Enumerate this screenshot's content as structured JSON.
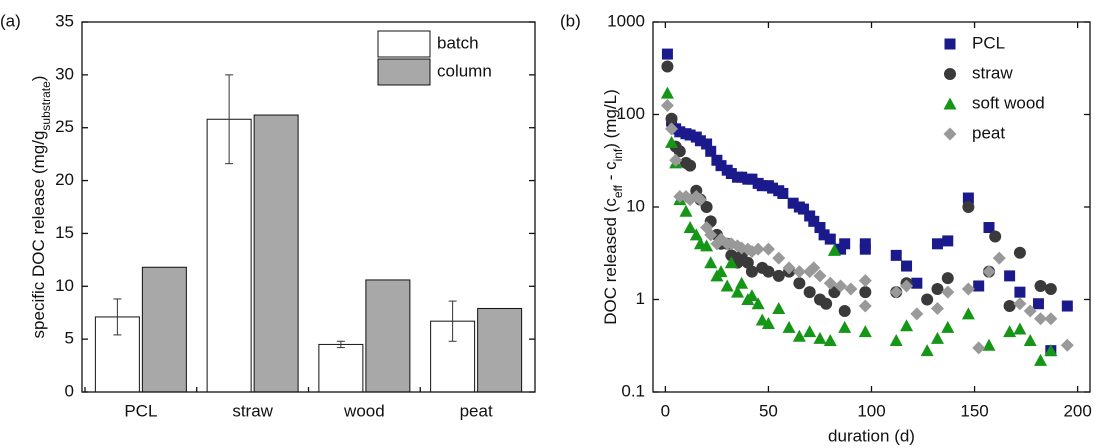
{
  "chart_data": [
    {
      "type": "bar",
      "panel_label": "(a)",
      "ylabel": [
        "specific DOC release (mg/g",
        "substrate",
        ")"
      ],
      "categories": [
        "PCL",
        "straw",
        "wood",
        "peat"
      ],
      "series": [
        {
          "name": "batch",
          "color": "#ffffff",
          "values": [
            7.1,
            25.8,
            4.5,
            6.7
          ],
          "errors": [
            1.7,
            4.2,
            0.3,
            1.9
          ]
        },
        {
          "name": "column",
          "color": "#a8a8a8",
          "values": [
            11.8,
            26.2,
            10.6,
            7.9
          ]
        }
      ],
      "ylim": [
        0,
        35
      ],
      "yticks": [
        0,
        5,
        10,
        15,
        20,
        25,
        30,
        35
      ],
      "legend": "top-right"
    },
    {
      "type": "scatter",
      "panel_label": "(b)",
      "ylabel": [
        "DOC released (c",
        "eff",
        " - c",
        "inf",
        ") (mg/L)"
      ],
      "xlabel": "duration (d)",
      "xlim": [
        -6,
        206
      ],
      "xticks": [
        0,
        50,
        100,
        150,
        200
      ],
      "ylim": [
        0.1,
        1000
      ],
      "yticks": [
        0.1,
        1,
        10,
        100,
        1000
      ],
      "yscale": "log",
      "legend": "top-right",
      "series": [
        {
          "name": "PCL",
          "color": "#1a1a8c",
          "marker": "square",
          "x": [
            1,
            3,
            5,
            7,
            10,
            12,
            15,
            17,
            20,
            22,
            25,
            27,
            30,
            32,
            35,
            37,
            40,
            42,
            45,
            47,
            50,
            52,
            55,
            57,
            62,
            65,
            67,
            70,
            72,
            75,
            77,
            80,
            85,
            87,
            97,
            97,
            112,
            117,
            122,
            132,
            137,
            147,
            152,
            157,
            167,
            172,
            181,
            187,
            195
          ],
          "values": [
            450,
            85,
            70,
            65,
            62,
            60,
            57,
            52,
            48,
            40,
            32,
            28,
            25,
            23,
            21,
            21,
            20,
            20,
            18,
            17,
            17,
            16,
            15,
            14,
            11,
            10,
            9.5,
            8,
            7,
            6,
            5,
            4.5,
            3.5,
            4,
            4,
            3.5,
            3,
            2.3,
            1.5,
            4,
            4.3,
            12.5,
            1.4,
            6,
            1.8,
            1.2,
            0.9,
            0.28,
            0.85
          ]
        },
        {
          "name": "straw",
          "color": "#3a3a3a",
          "marker": "circle",
          "x": [
            1,
            3,
            5,
            7,
            10,
            12,
            15,
            17,
            20,
            22,
            25,
            27,
            30,
            32,
            35,
            37,
            40,
            42,
            47,
            50,
            55,
            60,
            65,
            70,
            75,
            78,
            82,
            87,
            97,
            112,
            117,
            127,
            132,
            137,
            147,
            157,
            160,
            167,
            172,
            182,
            187
          ],
          "values": [
            330,
            90,
            45,
            40,
            30,
            28,
            15,
            12,
            10,
            7,
            5,
            4,
            4,
            3,
            2.5,
            3,
            2.5,
            2,
            2.2,
            2,
            1.8,
            2,
            1.5,
            1.2,
            1,
            0.9,
            1.2,
            0.75,
            1.2,
            1.2,
            1.5,
            1,
            1.3,
            1.7,
            10,
            2,
            4.8,
            0.85,
            3.2,
            1.4,
            1.3
          ]
        },
        {
          "name": "soft wood",
          "color": "#169616",
          "marker": "triangle",
          "x": [
            1,
            3,
            5,
            7,
            10,
            12,
            15,
            17,
            20,
            22,
            25,
            27,
            30,
            32,
            35,
            37,
            40,
            42,
            45,
            47,
            50,
            55,
            60,
            65,
            70,
            75,
            80,
            82,
            87,
            97,
            112,
            117,
            127,
            132,
            137,
            147,
            157,
            167,
            172,
            177,
            182,
            187
          ],
          "values": [
            170,
            50,
            30,
            12,
            9,
            6,
            5,
            4,
            3.8,
            2.5,
            1.8,
            2,
            1.4,
            2.5,
            1.2,
            1.5,
            1,
            1.1,
            0.9,
            0.6,
            0.55,
            0.8,
            0.5,
            0.4,
            0.45,
            0.38,
            0.36,
            3.4,
            0.5,
            0.45,
            0.36,
            0.52,
            0.28,
            0.38,
            0.5,
            0.7,
            0.32,
            0.45,
            0.48,
            0.36,
            0.22,
            0.28
          ]
        },
        {
          "name": "peat",
          "color": "#999999",
          "marker": "diamond",
          "x": [
            1,
            3,
            5,
            7,
            10,
            12,
            15,
            17,
            20,
            22,
            25,
            27,
            30,
            32,
            35,
            37,
            40,
            42,
            45,
            50,
            55,
            60,
            65,
            70,
            72,
            75,
            80,
            85,
            90,
            97,
            97,
            112,
            117,
            122,
            132,
            137,
            147,
            152,
            157,
            162,
            172,
            177,
            182,
            187,
            195
          ],
          "values": [
            125,
            70,
            32,
            13,
            13,
            12,
            13,
            12,
            6,
            5,
            4,
            4.5,
            4,
            4,
            3.8,
            3.6,
            3.5,
            3.3,
            3.5,
            3.5,
            2.8,
            2.2,
            2,
            2,
            2.2,
            1.8,
            1.5,
            1.4,
            1.3,
            1.6,
            0.85,
            1.2,
            1.4,
            0.7,
            0.8,
            1.2,
            1.3,
            0.3,
            2,
            2.8,
            0.9,
            0.75,
            0.62,
            0.62,
            0.32
          ]
        }
      ]
    }
  ]
}
